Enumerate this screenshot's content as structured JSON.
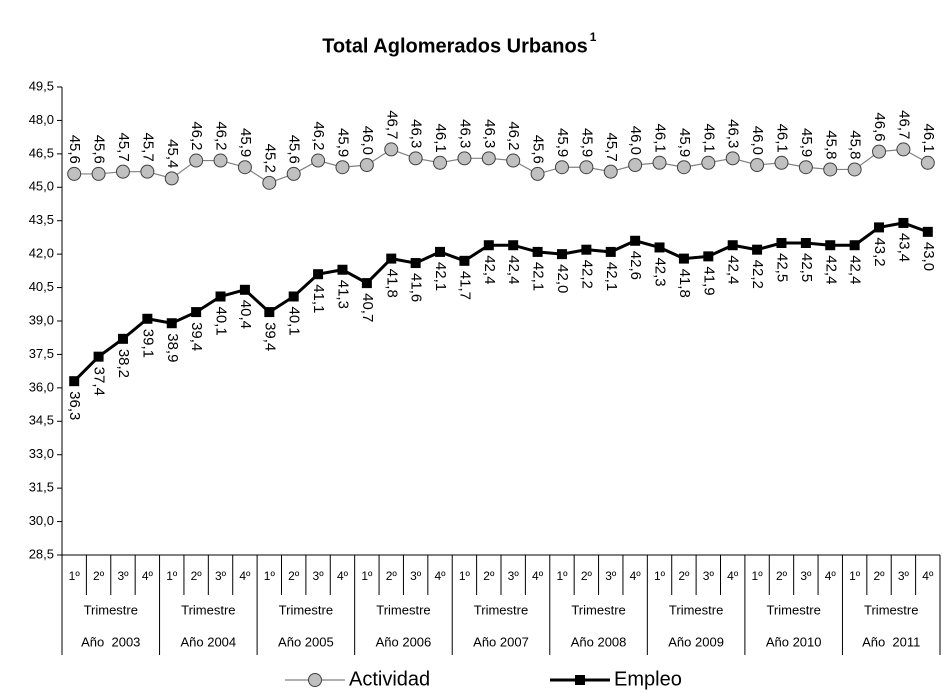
{
  "chart_data": {
    "type": "line",
    "title": "Total Aglomerados Urbanos",
    "title_note": "1",
    "categories": [
      "1º",
      "2º",
      "3º",
      "4º",
      "1º",
      "2º",
      "3º",
      "4º",
      "1º",
      "2º",
      "3º",
      "4º",
      "1º",
      "2º",
      "3º",
      "4º",
      "1º",
      "2º",
      "3º",
      "4º",
      "1º",
      "2º",
      "3º",
      "4º",
      "1º",
      "2º",
      "3º",
      "4º",
      "1º",
      "2º",
      "3º",
      "4º",
      "1º",
      "2º",
      "3º",
      "4º"
    ],
    "groups": [
      {
        "sublabel": "Trimestre",
        "label": "Año  2003"
      },
      {
        "sublabel": "Trimestre",
        "label": "Año 2004"
      },
      {
        "sublabel": "Trimestre",
        "label": "Año 2005"
      },
      {
        "sublabel": "Trimestre",
        "label": "Año 2006"
      },
      {
        "sublabel": "Trimestre",
        "label": "Año 2007"
      },
      {
        "sublabel": "Trimestre",
        "label": "Año 2008"
      },
      {
        "sublabel": "Trimestre",
        "label": "Año 2009"
      },
      {
        "sublabel": "Trimestre",
        "label": "Año 2010"
      },
      {
        "sublabel": "Trimestre",
        "label": "Año  2011"
      }
    ],
    "ylim": [
      28.5,
      49.5
    ],
    "yticks": [
      {
        "value": 28.5,
        "label": "28,5"
      },
      {
        "value": 30,
        "label": "30,0"
      },
      {
        "value": 31.5,
        "label": "31,5"
      },
      {
        "value": 33,
        "label": "33,0"
      },
      {
        "value": 34.5,
        "label": "34,5"
      },
      {
        "value": 36,
        "label": "36,0"
      },
      {
        "value": 37.5,
        "label": "37,5"
      },
      {
        "value": 39,
        "label": "39,0"
      },
      {
        "value": 40.5,
        "label": "40,5"
      },
      {
        "value": 42,
        "label": "42,0"
      },
      {
        "value": 43.5,
        "label": "43,5"
      },
      {
        "value": 45,
        "label": "45,0"
      },
      {
        "value": 46.5,
        "label": "46,5"
      },
      {
        "value": 48,
        "label": "48,0"
      },
      {
        "value": 49.5,
        "label": "49,5"
      }
    ],
    "grid": false,
    "series": [
      {
        "name": "Actividad",
        "color": "#808080",
        "marker": "circle",
        "label_side": "above",
        "values": [
          45.6,
          45.6,
          45.7,
          45.7,
          45.4,
          46.2,
          46.2,
          45.9,
          45.2,
          45.6,
          46.2,
          45.9,
          46.0,
          46.7,
          46.3,
          46.1,
          46.3,
          46.3,
          46.2,
          45.6,
          45.9,
          45.9,
          45.7,
          46.0,
          46.1,
          45.9,
          46.1,
          46.3,
          46.0,
          46.1,
          45.9,
          45.8,
          45.8,
          46.6,
          46.7,
          46.1
        ],
        "value_labels": [
          "45,6",
          "45,6",
          "45,7",
          "45,7",
          "45,4",
          "46,2",
          "46,2",
          "45,9",
          "45,2",
          "45,6",
          "46,2",
          "45,9",
          "46,0",
          "46,7",
          "46,3",
          "46,1",
          "46,3",
          "46,3",
          "46,2",
          "45,6",
          "45,9",
          "45,9",
          "45,7",
          "46,0",
          "46,1",
          "45,9",
          "46,1",
          "46,3",
          "46,0",
          "46,1",
          "45,9",
          "45,8",
          "45,8",
          "46,6",
          "46,7",
          "46,1"
        ]
      },
      {
        "name": "Empleo",
        "color": "#000000",
        "marker": "square",
        "label_side": "below",
        "values": [
          36.3,
          37.4,
          38.2,
          39.1,
          38.9,
          39.4,
          40.1,
          40.4,
          39.4,
          40.1,
          41.1,
          41.3,
          40.7,
          41.8,
          41.6,
          42.1,
          41.7,
          42.4,
          42.4,
          42.1,
          42.0,
          42.2,
          42.1,
          42.6,
          42.3,
          41.8,
          41.9,
          42.4,
          42.2,
          42.5,
          42.5,
          42.4,
          42.4,
          43.2,
          43.4,
          43.0
        ],
        "value_labels": [
          "36,3",
          "37,4",
          "38,2",
          "39,1",
          "38,9",
          "39,4",
          "40,1",
          "40,4",
          "39,4",
          "40,1",
          "41,1",
          "41,3",
          "40,7",
          "41,8",
          "41,6",
          "42,1",
          "41,7",
          "42,4",
          "42,4",
          "42,1",
          "42,0",
          "42,2",
          "42,1",
          "42,6",
          "42,3",
          "41,8",
          "41,9",
          "42,4",
          "42,2",
          "42,5",
          "42,5",
          "42,4",
          "42,4",
          "43,2",
          "43,4",
          "43,0"
        ]
      }
    ]
  }
}
